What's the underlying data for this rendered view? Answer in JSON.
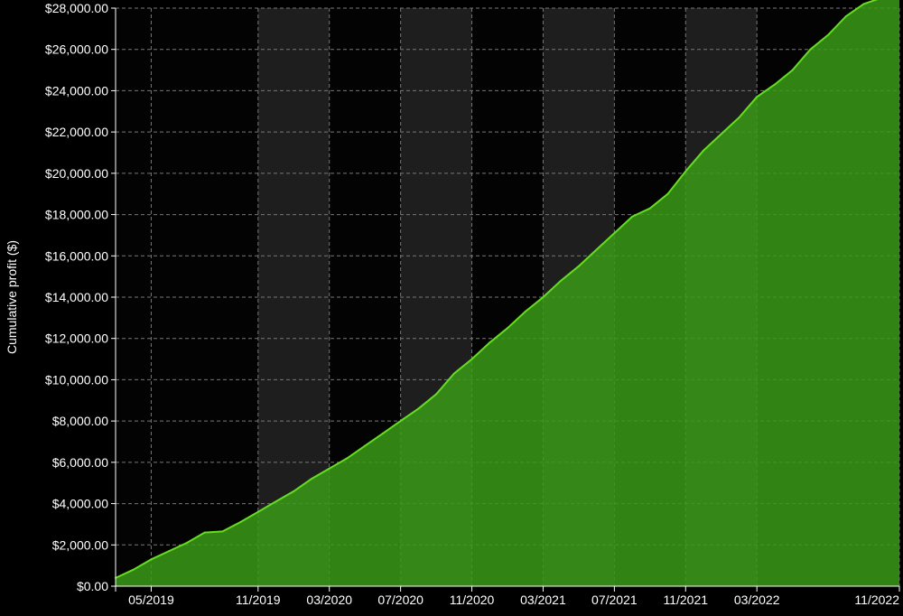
{
  "chart_data": {
    "type": "area",
    "title": "",
    "xlabel": "",
    "ylabel": "Cumulative profit ($)",
    "ylim": [
      0,
      28000
    ],
    "y_ticks": [
      0,
      2000,
      4000,
      6000,
      8000,
      10000,
      12000,
      14000,
      16000,
      18000,
      20000,
      22000,
      24000,
      26000,
      28000
    ],
    "y_tick_labels": [
      "$0.00",
      "$2,000.00",
      "$4,000.00",
      "$6,000.00",
      "$8,000.00",
      "$10,000.00",
      "$12,000.00",
      "$14,000.00",
      "$16,000.00",
      "$18,000.00",
      "$20,000.00",
      "$22,000.00",
      "$24,000.00",
      "$26,000.00",
      "$28,000.00"
    ],
    "x_range": [
      "2019-03",
      "2022-11"
    ],
    "x_ticks": [
      {
        "date": "2019-03",
        "label": ""
      },
      {
        "date": "2019-05",
        "label": "05/2019"
      },
      {
        "date": "2019-11",
        "label": "11/2019"
      },
      {
        "date": "2020-03",
        "label": "03/2020"
      },
      {
        "date": "2020-07",
        "label": "07/2020"
      },
      {
        "date": "2020-11",
        "label": "11/2020"
      },
      {
        "date": "2021-03",
        "label": "03/2021"
      },
      {
        "date": "2021-07",
        "label": "07/2021"
      },
      {
        "date": "2021-11",
        "label": "11/2021"
      },
      {
        "date": "2022-03",
        "label": "03/2022"
      },
      {
        "date": "2022-11",
        "label": "11/2022"
      }
    ],
    "grid": true,
    "shaded_bands": [
      [
        "2019-11",
        "2020-03"
      ],
      [
        "2020-07",
        "2020-11"
      ],
      [
        "2021-03",
        "2021-07"
      ],
      [
        "2021-11",
        "2022-03"
      ]
    ],
    "series": [
      {
        "x": [
          "2019-03",
          "2019-04",
          "2019-05",
          "2019-06",
          "2019-07",
          "2019-08",
          "2019-09",
          "2019-10",
          "2019-11",
          "2019-12",
          "2020-01",
          "2020-02",
          "2020-03",
          "2020-04",
          "2020-05",
          "2020-06",
          "2020-07",
          "2020-08",
          "2020-09",
          "2020-10",
          "2020-11",
          "2020-12",
          "2021-01",
          "2021-02",
          "2021-03",
          "2021-04",
          "2021-05",
          "2021-06",
          "2021-07",
          "2021-08",
          "2021-09",
          "2021-10",
          "2021-11",
          "2021-12",
          "2022-01",
          "2022-02",
          "2022-03",
          "2022-04",
          "2022-05",
          "2022-06",
          "2022-07",
          "2022-08",
          "2022-09",
          "2022-10",
          "2022-11"
        ],
        "values": [
          400,
          800,
          1300,
          1700,
          2100,
          2600,
          2650,
          3100,
          3600,
          4100,
          4600,
          5200,
          5700,
          6200,
          6800,
          7400,
          8000,
          8600,
          9300,
          10300,
          11000,
          11800,
          12500,
          13300,
          14000,
          14800,
          15500,
          16300,
          17100,
          17900,
          18300,
          19000,
          20100,
          21100,
          21900,
          22700,
          23700,
          24300,
          25000,
          26000,
          26700,
          27600,
          28200,
          28500,
          28800
        ]
      }
    ],
    "colors": {
      "line": "#66dd22",
      "fill": "#3a9a17",
      "background": "#030303",
      "band": "#1e1e1e",
      "grid": "#777777",
      "text": "#ffffff"
    }
  }
}
